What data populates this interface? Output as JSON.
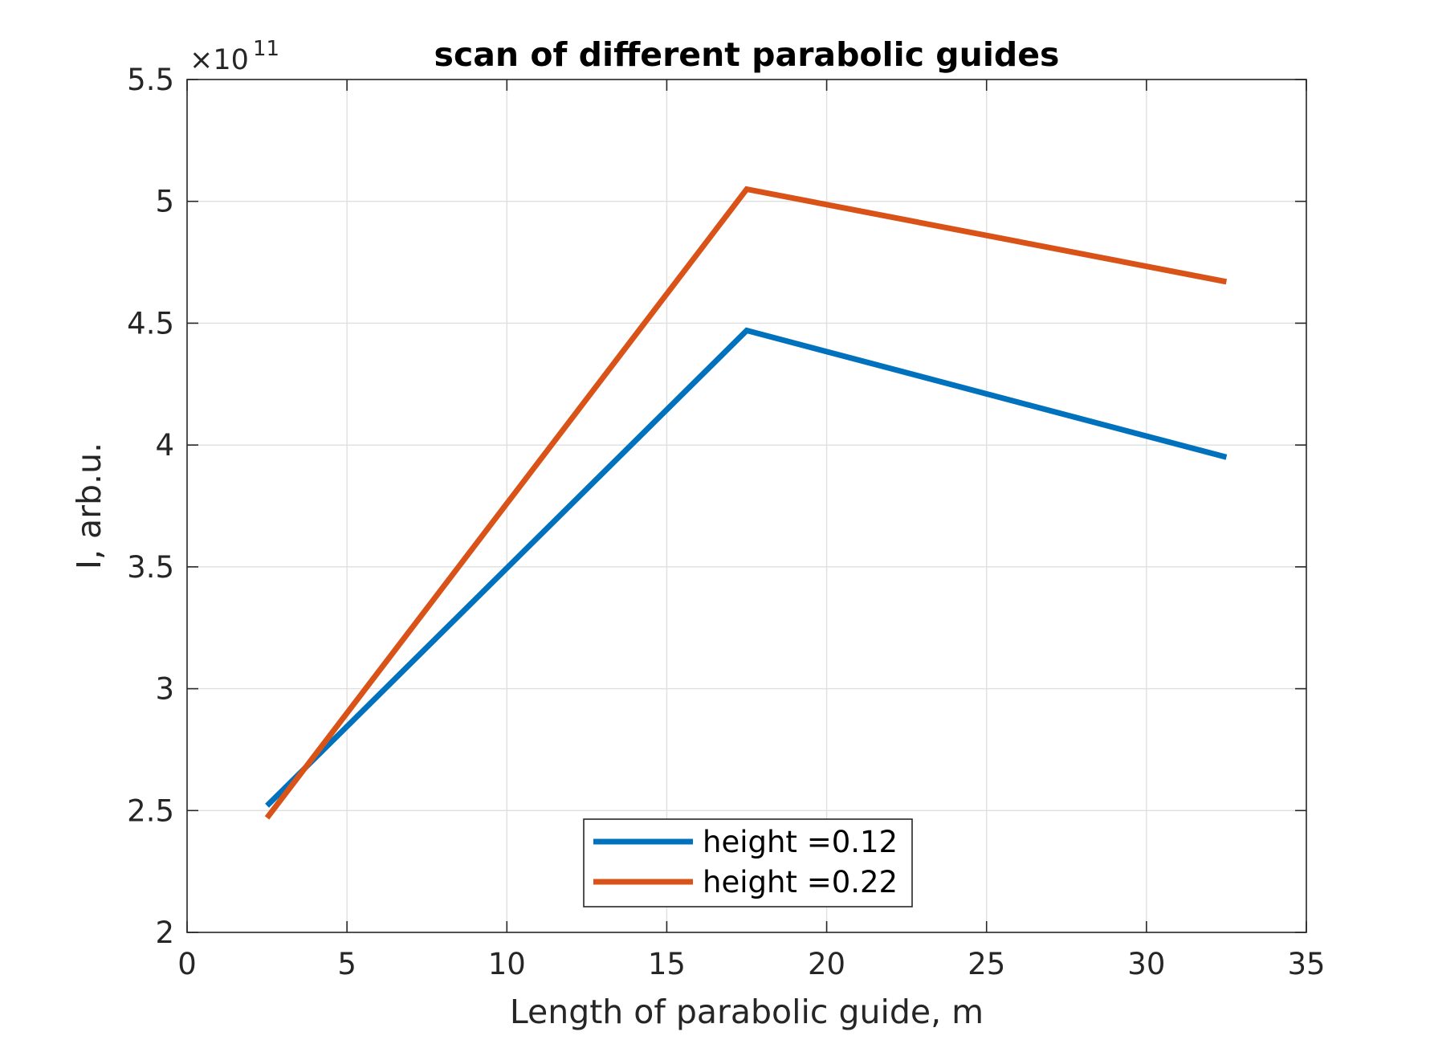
{
  "chart_data": {
    "type": "line",
    "title": "scan of different parabolic guides",
    "xlabel": "Length of parabolic guide, m",
    "ylabel": "I, arb.u.",
    "exponent_label": {
      "base": "×10",
      "power": "11"
    },
    "xlim": [
      0,
      35
    ],
    "ylim": [
      2,
      5.5
    ],
    "xticks": [
      0,
      5,
      10,
      15,
      20,
      25,
      30,
      35
    ],
    "yticks": [
      2,
      2.5,
      3,
      3.5,
      4,
      4.5,
      5,
      5.5
    ],
    "xtick_labels": [
      "0",
      "5",
      "10",
      "15",
      "20",
      "25",
      "30",
      "35"
    ],
    "ytick_labels": [
      "2",
      "2.5",
      "3",
      "3.5",
      "4",
      "4.5",
      "5",
      "5.5"
    ],
    "grid": true,
    "legend_position": "bottom-center",
    "series": [
      {
        "name": "height =0.12",
        "color": "#0072BD",
        "x": [
          2.5,
          17.5,
          32.5
        ],
        "y": [
          2.52,
          4.47,
          3.95
        ]
      },
      {
        "name": "height =0.22",
        "color": "#D95319",
        "x": [
          2.5,
          17.5,
          32.5
        ],
        "y": [
          2.47,
          5.05,
          4.67
        ]
      }
    ],
    "colors": {
      "axis": "#262626",
      "grid": "#dfdfdf",
      "text": "#262626"
    }
  }
}
